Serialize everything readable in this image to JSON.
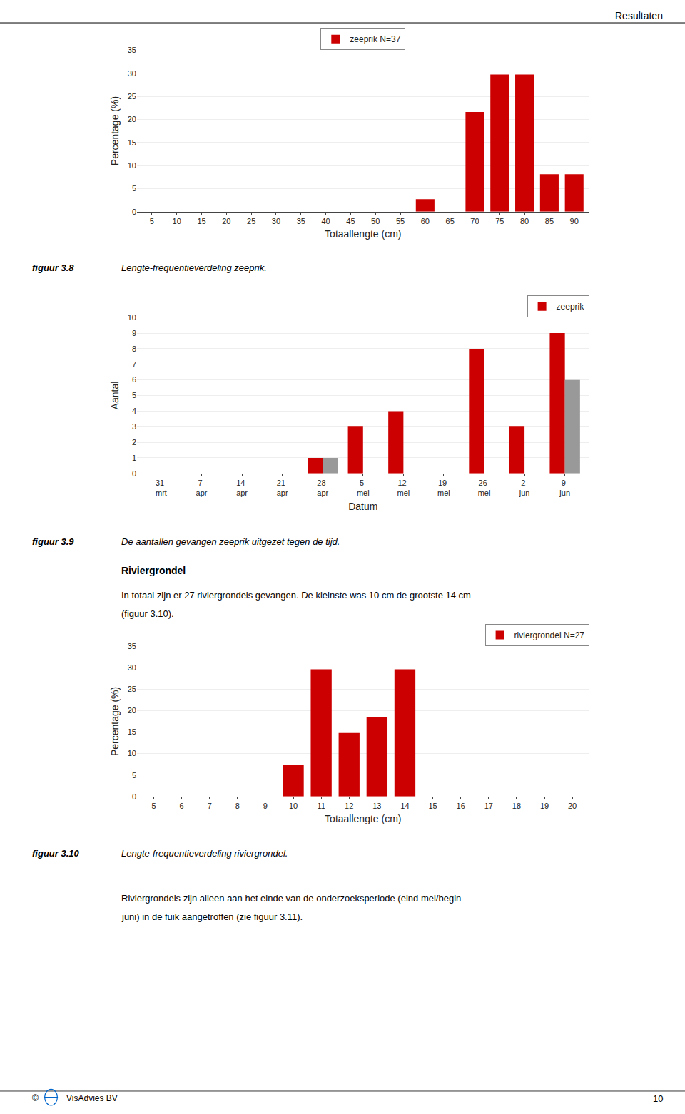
{
  "chart_data": [
    {
      "type": "bar",
      "categories": [
        5,
        10,
        15,
        20,
        25,
        30,
        35,
        40,
        45,
        50,
        55,
        60,
        65,
        70,
        75,
        80,
        85,
        90
      ],
      "series": [
        {
          "name": "zeeprik N=37",
          "color": "#CC0000",
          "values": [
            0,
            0,
            0,
            0,
            0,
            0,
            0,
            0,
            0,
            0,
            0,
            2.7,
            0,
            21.6,
            29.7,
            29.7,
            8.1,
            8.1
          ]
        }
      ],
      "xlabel": "Totaallengte (cm)",
      "ylabel": "Percentage (%)",
      "ylim": [
        0,
        35
      ],
      "yticks": [
        0,
        5,
        10,
        15,
        20,
        25,
        30,
        35
      ],
      "grid": true,
      "legend": "upper center"
    },
    {
      "type": "bar",
      "categories": [
        "31-\nmrt",
        "7-\napr",
        "14-\napr",
        "21-\napr",
        "28-\napr",
        "5-\nmei",
        "12-\nmei",
        "19-\nmei",
        "26-\nmei",
        "2-\njun",
        "9-\njun"
      ],
      "series": [
        {
          "name": "zeeprik",
          "color": "#CC0000",
          "values": [
            0,
            0,
            0,
            0,
            1,
            3,
            4,
            0,
            8,
            3,
            9
          ]
        },
        {
          "color": "#999999",
          "values": [
            0,
            0,
            0,
            0,
            1,
            0,
            0,
            0,
            0,
            0,
            6
          ]
        }
      ],
      "xlabel": "Datum",
      "ylabel": "Aantal",
      "ylim": [
        0,
        10
      ],
      "yticks": [
        0,
        1,
        2,
        3,
        4,
        5,
        6,
        7,
        8,
        9,
        10
      ],
      "grid": true,
      "legend": "upper right"
    },
    {
      "type": "bar",
      "categories": [
        5,
        6,
        7,
        8,
        9,
        10,
        11,
        12,
        13,
        14,
        15,
        16,
        17,
        18,
        19,
        20
      ],
      "series": [
        {
          "name": "riviergrondel N=27",
          "color": "#CC0000",
          "values": [
            0,
            0,
            0,
            0,
            0,
            7.4,
            29.6,
            14.8,
            18.5,
            29.6,
            0,
            0,
            0,
            0,
            0,
            0
          ]
        }
      ],
      "xlabel": "Totaallengte (cm)",
      "ylabel": "Percentage (%)",
      "ylim": [
        0,
        35
      ],
      "yticks": [
        0,
        5,
        10,
        15,
        20,
        25,
        30,
        35
      ],
      "grid": true,
      "legend": "upper right"
    }
  ],
  "page": {
    "header": "Resultaten",
    "captions": [
      {
        "label": "figuur 3.8",
        "text": "Lengte-frequentieverdeling zeeprik."
      },
      {
        "label": "figuur 3.9",
        "text": "De aantallen gevangen zeeprik uitgezet tegen de tijd."
      },
      {
        "label": "figuur 3.10",
        "text": "Lengte-frequentieverdeling riviergrondel."
      }
    ],
    "section_title": "Riviergrondel",
    "section_text": [
      "In totaal zijn er 27 riviergrondels gevangen. De kleinste was 10 cm de grootste 14 cm",
      "(figuur 3.10)."
    ],
    "bottom_text": [
      "Riviergrondels zijn alleen aan het einde van de onderzoeksperiode (eind mei/begin",
      "juni) in de fuik aangetroffen (zie figuur 3.11)."
    ],
    "footer_left": [
      "©",
      "VisAdvies BV"
    ],
    "footer_right": "10"
  }
}
